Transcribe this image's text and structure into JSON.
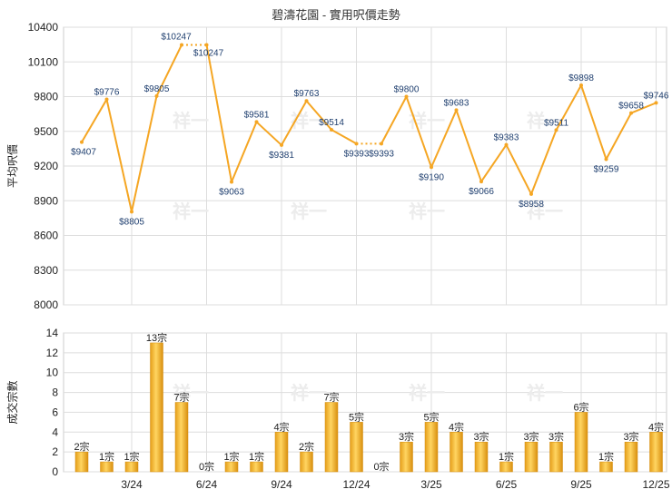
{
  "title": "碧濤花園 - 實用呎價走勢",
  "watermark": "祥一",
  "colors": {
    "line": "#f5a623",
    "bar": "#f0b030",
    "bar_dark": "#d48e10",
    "grid": "#dddddd",
    "label": "#1f3f6f"
  },
  "chart_data": [
    {
      "type": "line",
      "ylabel": "平均呎價",
      "ylim": [
        8000,
        10400
      ],
      "yticks": [
        8000,
        8300,
        8600,
        8900,
        9200,
        9500,
        9800,
        10100,
        10400
      ],
      "x_ticks": [
        {
          "index": 2,
          "label": "3/24"
        },
        {
          "index": 5,
          "label": "6/24"
        },
        {
          "index": 8,
          "label": "9/24"
        },
        {
          "index": 11,
          "label": "12/24"
        },
        {
          "index": 14,
          "label": "3/25"
        },
        {
          "index": 17,
          "label": "6/25"
        },
        {
          "index": 20,
          "label": "9/25"
        },
        {
          "index": 23,
          "label": "12/25"
        }
      ],
      "values": [
        9407,
        9776,
        8805,
        9805,
        10247,
        10247,
        9063,
        9581,
        9381,
        9763,
        9514,
        9393,
        9393,
        9800,
        9190,
        9683,
        9066,
        9383,
        8958,
        9511,
        9898,
        9259,
        9658,
        9746
      ],
      "labels": [
        "$9407",
        "$9776",
        "$8805",
        "$9805",
        "$10247",
        "$10247",
        "$9063",
        "$9581",
        "$9381",
        "$9763",
        "$9514",
        "$9393",
        "$9393",
        "$9800",
        "$9190",
        "$9683",
        "$9066",
        "$9383",
        "$8958",
        "$9511",
        "$9898",
        "$9259",
        "$9658",
        "$9746"
      ],
      "dotted_segments": [
        [
          4,
          5
        ],
        [
          11,
          12
        ]
      ]
    },
    {
      "type": "bar",
      "ylabel": "成交宗數",
      "ylim": [
        0,
        14
      ],
      "yticks": [
        0,
        2,
        4,
        6,
        8,
        10,
        12,
        14
      ],
      "values": [
        2,
        1,
        1,
        13,
        7,
        0,
        1,
        1,
        4,
        2,
        7,
        5,
        0,
        3,
        5,
        4,
        3,
        1,
        3,
        3,
        6,
        1,
        3,
        4
      ],
      "labels": [
        "2宗",
        "1宗",
        "1宗",
        "13宗",
        "7宗",
        "0宗",
        "1宗",
        "1宗",
        "4宗",
        "2宗",
        "7宗",
        "5宗",
        "0宗",
        "3宗",
        "5宗",
        "4宗",
        "3宗",
        "1宗",
        "3宗",
        "3宗",
        "6宗",
        "1宗",
        "3宗",
        "4宗"
      ],
      "x_ticks": [
        {
          "index": 2,
          "label": "3/24"
        },
        {
          "index": 5,
          "label": "6/24"
        },
        {
          "index": 8,
          "label": "9/24"
        },
        {
          "index": 11,
          "label": "12/24"
        },
        {
          "index": 14,
          "label": "3/25"
        },
        {
          "index": 17,
          "label": "6/25"
        },
        {
          "index": 20,
          "label": "9/25"
        },
        {
          "index": 23,
          "label": "12/25"
        }
      ]
    }
  ]
}
